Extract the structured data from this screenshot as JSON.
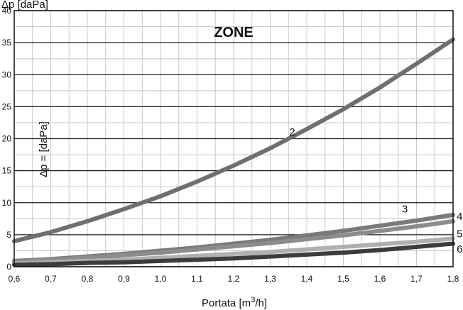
{
  "chart_data": {
    "type": "line",
    "title": "ZONE",
    "ylabel_top": "Δp [daPa]",
    "inner_label": "Δp = [daPa]",
    "xlabel_text": "Portata [m",
    "xlabel_sup": "3",
    "xlabel_end": "/h]",
    "xlim": [
      0.6,
      1.8
    ],
    "ylim": [
      0,
      40
    ],
    "x_ticks": [
      "0,6",
      "0,7",
      "0,8",
      "0,9",
      "1,0",
      "1,1",
      "1,2",
      "1,3",
      "1,4",
      "1,5",
      "1,6",
      "1,7",
      "1,8"
    ],
    "y_ticks": [
      "0",
      "5",
      "10",
      "15",
      "20",
      "25",
      "30",
      "35",
      "40"
    ],
    "grid": true,
    "series": [
      {
        "name": "2",
        "color": "#6f6f6f",
        "x": [
          0.6,
          0.7,
          0.8,
          0.9,
          1.0,
          1.1,
          1.2,
          1.3,
          1.4,
          1.5,
          1.6,
          1.7,
          1.8
        ],
        "y": [
          4.0,
          5.4,
          7.1,
          9.0,
          11.0,
          13.3,
          15.8,
          18.5,
          21.5,
          24.6,
          28.0,
          31.7,
          35.5
        ]
      },
      {
        "name": "3",
        "color": "#7a7a7a",
        "x": [
          0.6,
          0.7,
          0.8,
          0.9,
          1.0,
          1.1,
          1.2,
          1.3,
          1.4,
          1.5,
          1.6,
          1.7,
          1.8
        ],
        "y": [
          0.9,
          1.2,
          1.6,
          2.0,
          2.5,
          3.0,
          3.6,
          4.2,
          4.9,
          5.6,
          6.4,
          7.2,
          8.1
        ]
      },
      {
        "name": "4",
        "color": "#8c8c8c",
        "x": [
          0.6,
          0.7,
          0.8,
          0.9,
          1.0,
          1.1,
          1.2,
          1.3,
          1.4,
          1.5,
          1.6,
          1.7,
          1.8
        ],
        "y": [
          0.8,
          1.1,
          1.4,
          1.8,
          2.2,
          2.7,
          3.2,
          3.7,
          4.3,
          4.9,
          5.6,
          6.3,
          7.1
        ]
      },
      {
        "name": "5",
        "color": "#b0b0b0",
        "x": [
          0.6,
          0.7,
          0.8,
          0.9,
          1.0,
          1.1,
          1.2,
          1.3,
          1.4,
          1.5,
          1.6,
          1.7,
          1.8
        ],
        "y": [
          0.5,
          0.7,
          0.9,
          1.1,
          1.4,
          1.7,
          2.0,
          2.3,
          2.7,
          3.1,
          3.5,
          3.9,
          4.4
        ]
      },
      {
        "name": "6",
        "color": "#3c3c3c",
        "x": [
          0.6,
          0.7,
          0.8,
          0.9,
          1.0,
          1.1,
          1.2,
          1.3,
          1.4,
          1.5,
          1.6,
          1.7,
          1.8
        ],
        "y": [
          0.3,
          0.4,
          0.6,
          0.7,
          0.9,
          1.1,
          1.3,
          1.6,
          1.9,
          2.2,
          2.6,
          3.1,
          3.6
        ]
      }
    ]
  }
}
